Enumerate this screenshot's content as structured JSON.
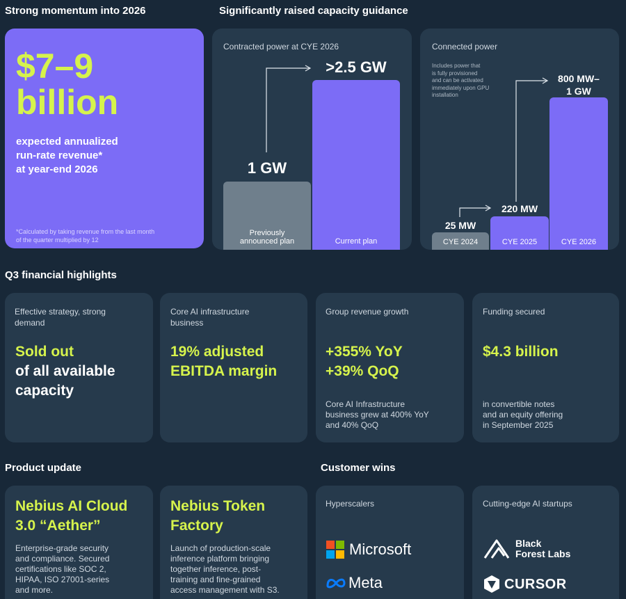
{
  "momentum": {
    "title": "Strong momentum into 2026",
    "amount_line1": "$7–9",
    "amount_line2": "billion",
    "description": "expected annualized\nrun-rate revenue*\nat year-end 2026",
    "footnote": "*Calculated by taking revenue from the last month\nof the quarter multiplied by 12"
  },
  "capacity": {
    "title": "Significantly raised capacity guidance",
    "contracted": {
      "label": "Contracted power at CYE 2026",
      "previous_value": "1 GW",
      "previous_label": "Previously\nannounced plan",
      "current_value": ">2.5 GW",
      "current_label": "Current plan"
    },
    "connected": {
      "label": "Connected power",
      "note": "Includes power that\nis fully provisioned\nand can be activated\nimmediately upon GPU\ninstallation",
      "bars": [
        {
          "value": "25 MW",
          "label": "CYE 2024"
        },
        {
          "value": "220 MW",
          "label": "CYE 2025"
        },
        {
          "value": "800 MW–\n1 GW",
          "label": "CYE 2026"
        }
      ]
    }
  },
  "colors": {
    "background": "#182838",
    "card": "#263a4c",
    "purple": "#7c6cf6",
    "lime": "#d6f34c",
    "gray_bar": "#6f7f8c"
  },
  "q3": {
    "title": "Q3 financial highlights",
    "cards": [
      {
        "label": "Effective strategy, strong\ndemand",
        "highlight": "Sold out",
        "rest": "of all available\ncapacity",
        "detail": ""
      },
      {
        "label": "Core AI infrastructure\nbusiness",
        "highlight": "19% adjusted\nEBITDA margin",
        "rest": "",
        "detail": ""
      },
      {
        "label": "Group revenue growth",
        "highlight": "+355% YoY\n+39% QoQ",
        "rest": "",
        "detail": "Core AI Infrastructure\nbusiness grew at 400% YoY\nand 40% QoQ"
      },
      {
        "label": "Funding secured",
        "highlight": "$4.3 billion",
        "rest": "",
        "detail": "in convertible notes\nand an equity offering\nin September 2025"
      }
    ]
  },
  "product": {
    "title": "Product update",
    "cards": [
      {
        "title": "Nebius AI Cloud\n3.0 “Aether”",
        "body": "Enterprise-grade security\nand compliance. Secured\ncertifications like SOC 2,\nHIPAA, ISO 27001-series\nand more."
      },
      {
        "title": "Nebius Token\nFactory",
        "body": "Launch of production-scale\ninference platform bringing\ntogether inference, post-\ntraining and fine-grained\naccess management with S3."
      }
    ]
  },
  "customers": {
    "title": "Customer wins",
    "hyperscalers": {
      "label": "Hyperscalers",
      "logos": [
        "Microsoft",
        "Meta"
      ]
    },
    "startups": {
      "label": "Cutting-edge AI startups",
      "logos": [
        "Black\nForest Labs",
        "CURSOR"
      ]
    }
  }
}
